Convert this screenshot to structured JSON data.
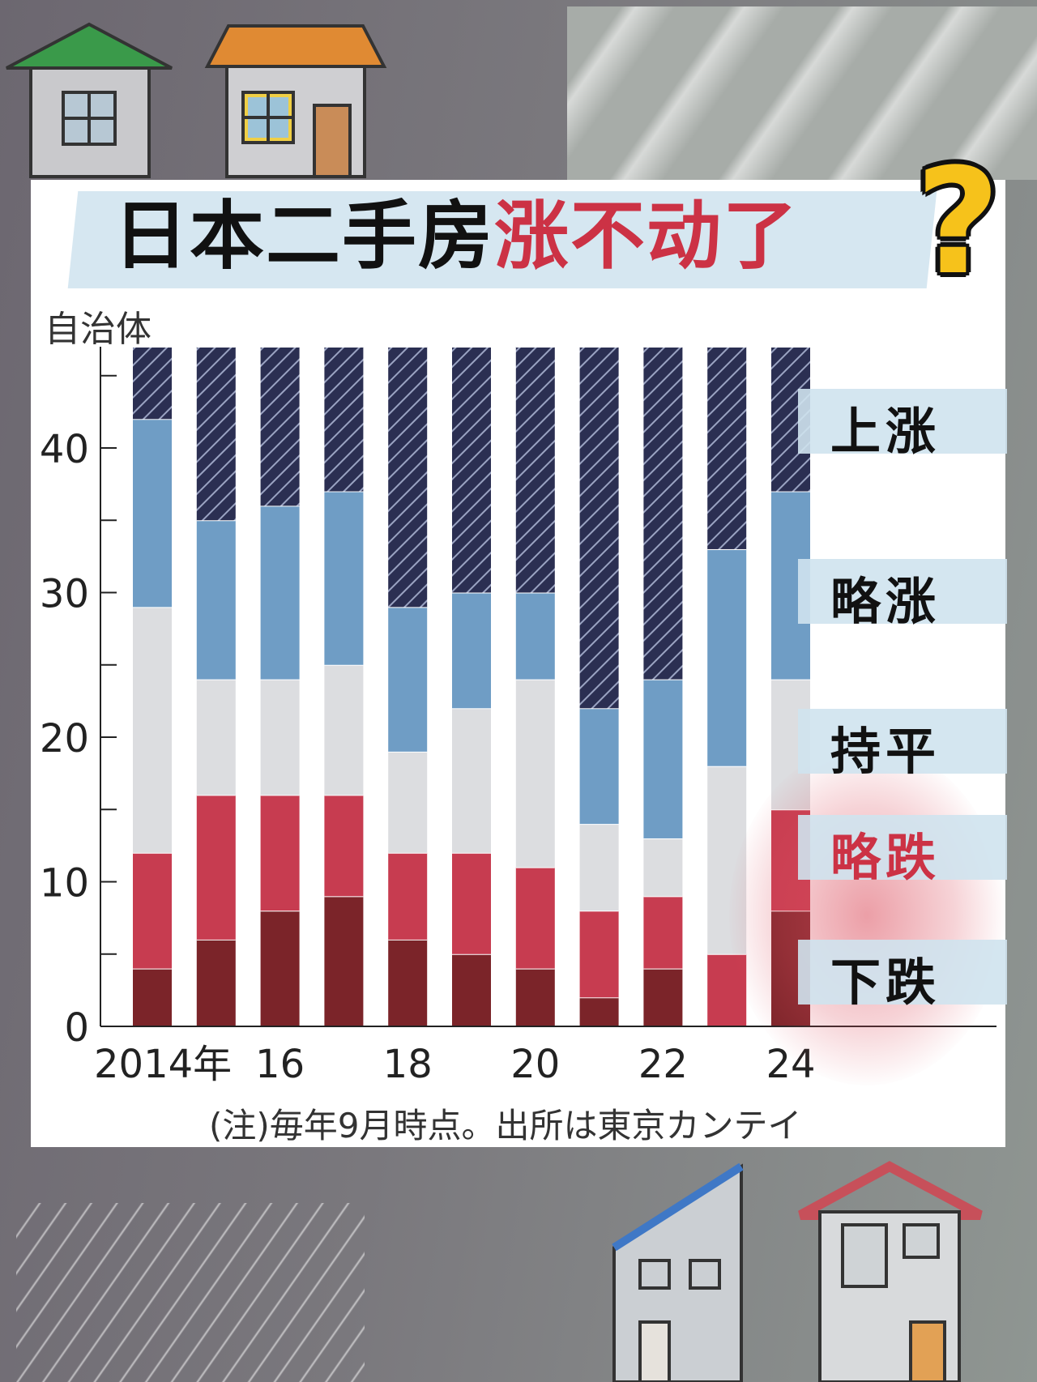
{
  "title": {
    "black": "日本二手房",
    "red": "涨不动了"
  },
  "question_mark": "?",
  "colors": {
    "up": "#2b2f52",
    "slightly_up": "#6f9dc5",
    "flat": "#dcdde0",
    "slightly_down": "#c73c50",
    "down": "#7b2429",
    "title_red": "#cc3245",
    "question_yellow": "#f6c21b"
  },
  "legend": [
    {
      "key": "up",
      "label": "上涨",
      "color": "#111111"
    },
    {
      "key": "slightly_up",
      "label": "略涨",
      "color": "#111111"
    },
    {
      "key": "flat",
      "label": "持平",
      "color": "#111111"
    },
    {
      "key": "slightly_down",
      "label": "略跌",
      "color": "#cc3245"
    },
    {
      "key": "down",
      "label": "下跌",
      "color": "#111111"
    }
  ],
  "chart_data": {
    "type": "bar",
    "stacked": true,
    "ylabel": "自治体",
    "note": "(注)毎年9月時点。出所は東京カンテイ",
    "categories": [
      "2014",
      "2015",
      "2016",
      "2017",
      "2018",
      "2019",
      "2020",
      "2021",
      "2022",
      "2023",
      "2024"
    ],
    "x_tick_labels": [
      "2014年",
      "16",
      "18",
      "20",
      "22",
      "24"
    ],
    "x_tick_categories": [
      "2014",
      "2016",
      "2018",
      "2020",
      "2022",
      "2024"
    ],
    "y_ticks": [
      "0",
      "10",
      "20",
      "30",
      "40"
    ],
    "ylim": [
      0,
      47
    ],
    "series": [
      {
        "name": "下跌",
        "key": "down",
        "values": [
          4,
          6,
          8,
          9,
          6,
          5,
          4,
          2,
          4,
          0,
          8
        ]
      },
      {
        "name": "略跌",
        "key": "slightly_down",
        "values": [
          8,
          10,
          8,
          7,
          6,
          7,
          7,
          6,
          5,
          5,
          7
        ]
      },
      {
        "name": "持平",
        "key": "flat",
        "values": [
          17,
          8,
          8,
          9,
          7,
          10,
          13,
          6,
          4,
          13,
          9
        ]
      },
      {
        "name": "略涨",
        "key": "slightly_up",
        "values": [
          13,
          11,
          12,
          12,
          10,
          8,
          6,
          8,
          11,
          15,
          13
        ]
      },
      {
        "name": "上涨",
        "key": "up",
        "values": [
          5,
          12,
          11,
          10,
          18,
          17,
          17,
          25,
          23,
          14,
          10
        ]
      }
    ]
  }
}
